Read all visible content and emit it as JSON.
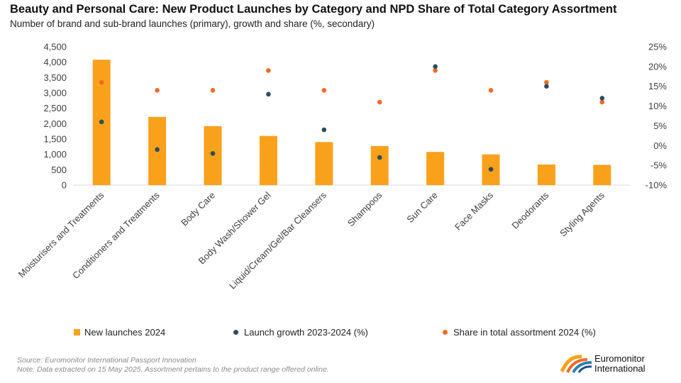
{
  "title": "Beauty and Personal Care: New Product Launches by Category and NPD Share of Total Category Assortment",
  "subtitle": "Number of brand and sub-brand launches (primary), growth and share (%, secondary)",
  "source_line": "Source: Euromonitor International Passport Innovation",
  "note_line": "Note: Data extracted on 15 May 2025. Assortment pertains to the product range offered online.",
  "logo": {
    "line1": "Euromonitor",
    "line2": "International"
  },
  "colors": {
    "bar": "#F9A11B",
    "growth": "#2E4D5C",
    "share": "#F26B21",
    "axis": "#d9d9d9",
    "text": "#404040"
  },
  "chart_data": {
    "type": "bar",
    "categories": [
      "Moisturisers and Treatments",
      "Conditioners and Treatments",
      "Body Care",
      "Body Wash/Shower Gel",
      "Liquid/Cream/Gel/Bar Cleansers",
      "Shampoos",
      "Sun Care",
      "Face Masks",
      "Deodorants",
      "Styling Agents"
    ],
    "series": [
      {
        "name": "New launches 2024",
        "type": "bar",
        "axis": "primary",
        "values": [
          4080,
          2220,
          1920,
          1600,
          1400,
          1270,
          1080,
          1000,
          670,
          660
        ]
      },
      {
        "name": "Launch growth 2023-2024 (%)",
        "type": "scatter",
        "axis": "secondary",
        "values": [
          6,
          -1,
          -2,
          13,
          4,
          -3,
          20,
          -6,
          15,
          12
        ]
      },
      {
        "name": "Share in total assortment 2024 (%)",
        "type": "scatter",
        "axis": "secondary",
        "values": [
          16,
          14,
          14,
          19,
          14,
          11,
          19,
          14,
          16,
          11
        ]
      }
    ],
    "y_primary": {
      "ylim": [
        0,
        4500
      ],
      "ticks": [
        "0",
        "500",
        "1,000",
        "1,500",
        "2,000",
        "2,500",
        "3,000",
        "3,500",
        "4,000",
        "4,500"
      ],
      "tick_values": [
        0,
        500,
        1000,
        1500,
        2000,
        2500,
        3000,
        3500,
        4000,
        4500
      ]
    },
    "y_secondary": {
      "ylim": [
        -10,
        25
      ],
      "ticks": [
        "-10%",
        "-5%",
        "0%",
        "5%",
        "10%",
        "15%",
        "20%",
        "25%"
      ],
      "tick_values": [
        -10,
        -5,
        0,
        5,
        10,
        15,
        20,
        25
      ]
    },
    "grid": false,
    "legend_position": "bottom"
  }
}
